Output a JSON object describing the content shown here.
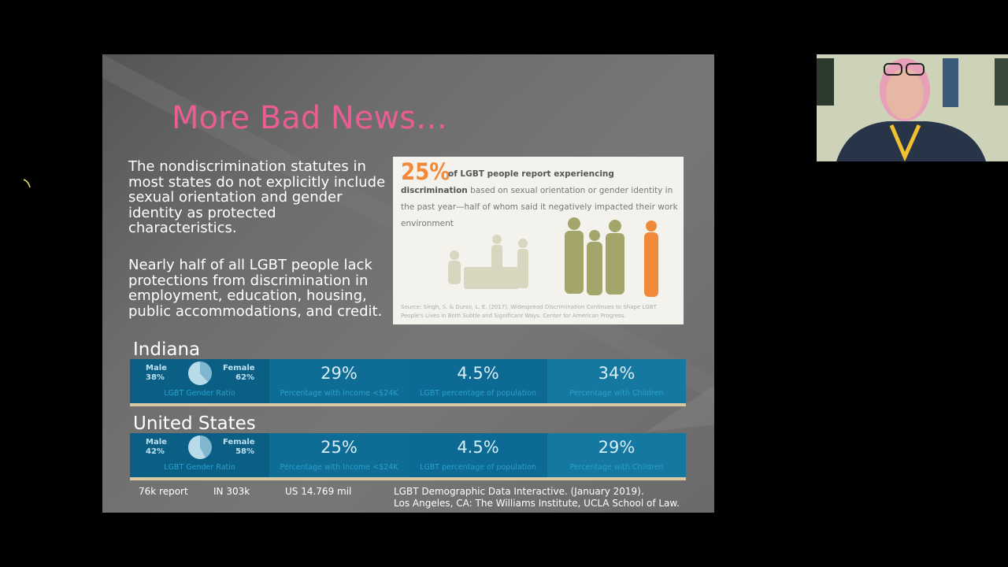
{
  "slide": {
    "title": "More Bad News…",
    "paragraphs": [
      "The nondiscrimination statutes in most states do not explicitly include sexual orientation and gender identity as protected characteristics.",
      "Nearly half of all LGBT people lack protections from discrimination in employment, education, housing, public accommodations, and credit."
    ],
    "infographic": {
      "stat": "25%",
      "headline": "of LGBT people report experiencing discrimination",
      "body": " based on sexual orientation or gender identity in the past year—half of whom said it negatively impacted their work environment",
      "source": "Source: Singh, S. & Durso, L. E. (2017). Widespread Discrimination Continues to Shape LGBT People's Lives in Both Subtle and Significant Ways. Center for American Progress."
    },
    "panels": [
      {
        "label": "Indiana",
        "gender": {
          "names": [
            "Male",
            "Female"
          ],
          "values": [
            38,
            62
          ],
          "value_labels": [
            "38%",
            "62%"
          ],
          "caption": "LGBT Gender Ratio"
        },
        "stats": [
          {
            "value": "29%",
            "caption": "Percentage with Income <$24K"
          },
          {
            "value": "4.5%",
            "caption": "LGBT percentage of population"
          },
          {
            "value": "34%",
            "caption": "Percentage with Children"
          }
        ]
      },
      {
        "label": "United States",
        "gender": {
          "names": [
            "Male",
            "Female"
          ],
          "values": [
            42,
            58
          ],
          "value_labels": [
            "42%",
            "58%"
          ],
          "caption": "LGBT Gender Ratio"
        },
        "stats": [
          {
            "value": "25%",
            "caption": "Percentage with Income <$24K"
          },
          {
            "value": "4.5%",
            "caption": "LGBT percentage of population"
          },
          {
            "value": "29%",
            "caption": "Percentage with Children"
          }
        ]
      }
    ],
    "footnotes": [
      "76k report",
      "IN 303k",
      "US 14.769 mil"
    ],
    "citation": [
      "LGBT Demographic Data Interactive. (January 2019).",
      "Los Angeles, CA: The Williams Institute, UCLA School of Law."
    ]
  }
}
